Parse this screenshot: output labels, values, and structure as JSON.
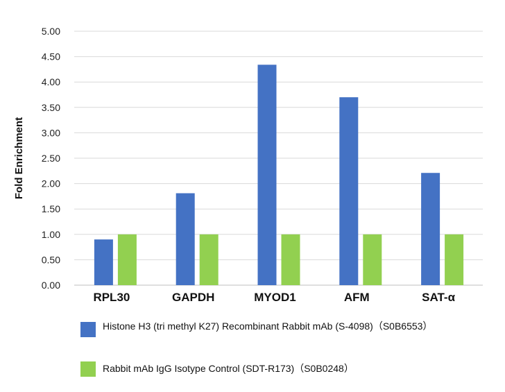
{
  "chart_data": {
    "type": "bar",
    "ylabel": "Fold Enrichment",
    "xlabel": "",
    "ylim": [
      0,
      5
    ],
    "yticks": [
      "0.00",
      "0.50",
      "1.00",
      "1.50",
      "2.00",
      "2.50",
      "3.00",
      "3.50",
      "4.00",
      "4.50",
      "5.00"
    ],
    "categories": [
      "RPL30",
      "GAPDH",
      "MYOD1",
      "AFM",
      "SAT-α"
    ],
    "grid": true,
    "legend_position": "bottom",
    "series": [
      {
        "name": "Histone H3 (tri methyl K27) Recombinant Rabbit mAb (S-4098)（S0B6553）",
        "color": "#4472C4",
        "values": [
          0.9,
          1.81,
          4.34,
          3.7,
          2.21
        ]
      },
      {
        "name": "Rabbit mAb IgG Isotype Control (SDT-R173)（S0B0248）",
        "color": "#92D050",
        "values": [
          1.0,
          1.0,
          1.0,
          1.0,
          1.0
        ]
      }
    ]
  }
}
